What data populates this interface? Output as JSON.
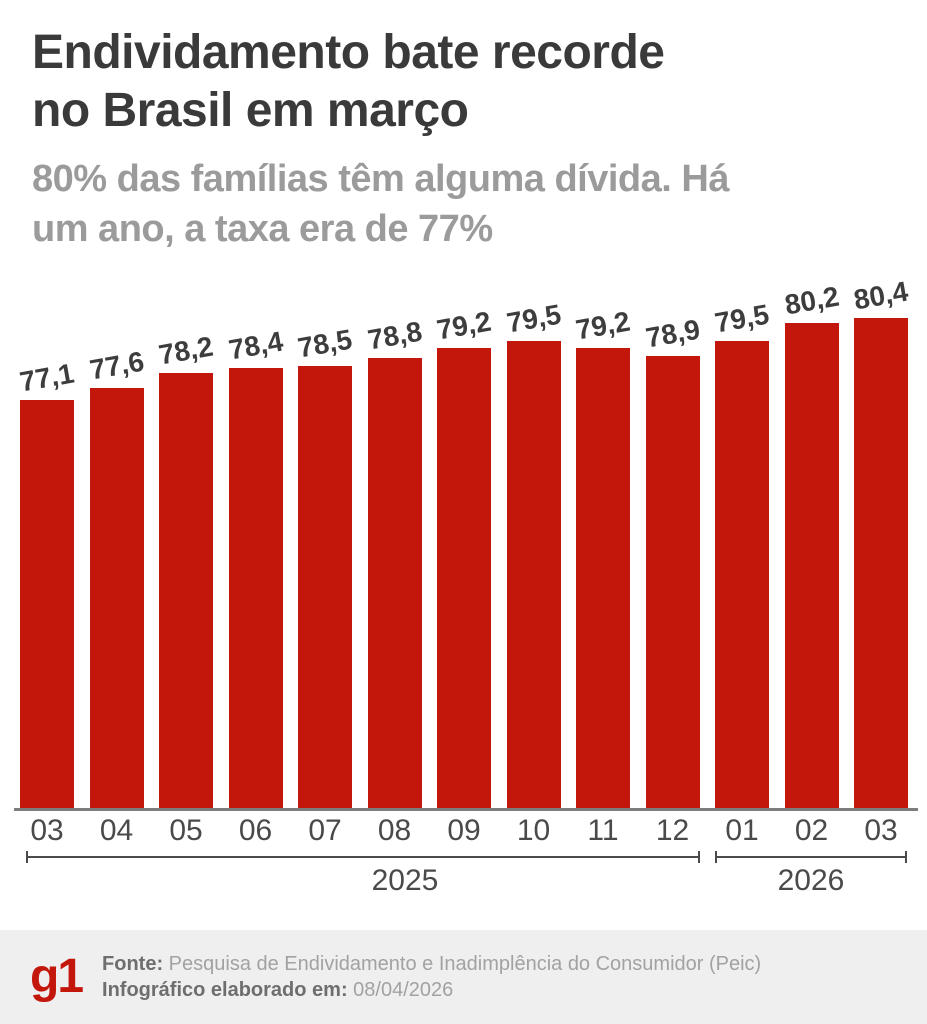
{
  "header": {
    "title_lines": [
      "Endividamento bate recorde",
      "no Brasil em março"
    ],
    "subtitle_lines": [
      "80% das famílias têm alguma dívida. Há",
      "um ano, a taxa era de 77%"
    ]
  },
  "chart_data": {
    "type": "bar",
    "title": "Endividamento bate recorde no Brasil em março",
    "subtitle": "80% das famílias têm alguma dívida. Há um ano, a taxa era de 77%",
    "unit": "%",
    "bar_color": "#c4170c",
    "categories": [
      "03",
      "04",
      "05",
      "06",
      "07",
      "08",
      "09",
      "10",
      "11",
      "12",
      "01",
      "02",
      "03"
    ],
    "values": [
      77.1,
      77.6,
      78.2,
      78.4,
      78.5,
      78.8,
      79.2,
      79.5,
      79.2,
      78.9,
      79.5,
      80.2,
      80.4
    ],
    "value_labels": [
      "77,1",
      "77,6",
      "78,2",
      "78,4",
      "78,5",
      "78,8",
      "79,2",
      "79,5",
      "79,2",
      "78,9",
      "79,5",
      "80,2",
      "80,4"
    ],
    "year_groups": [
      {
        "label": "2025",
        "from_index": 0,
        "to_index": 9
      },
      {
        "label": "2026",
        "from_index": 10,
        "to_index": 12
      }
    ],
    "ylim": [
      60.7,
      82
    ],
    "grid": false,
    "legend": false,
    "xlabel": "",
    "ylabel": ""
  },
  "footer": {
    "logo": "g1",
    "source_label": "Fonte:",
    "source_text": "Pesquisa de Endividamento e Inadimplência do Consumidor (Peic)",
    "elaborated_label": "Infográfico elaborado em:",
    "elaborated_date": "08/04/2026"
  },
  "colors": {
    "bar_red": "#c4170c",
    "title_text": "#3a3a3a",
    "subtitle_text": "#9b9b9b",
    "axis_line": "#7d7d7d",
    "axis_text": "#4a4a4a",
    "footer_bg": "#efefef"
  }
}
